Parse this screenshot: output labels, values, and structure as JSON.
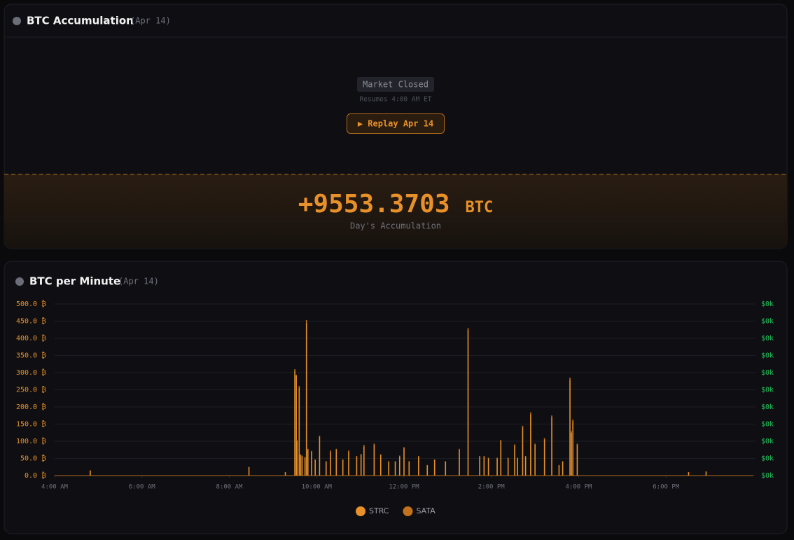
{
  "panel": {
    "title": "BTC Accumulation",
    "date": "(Apr 14)",
    "status": "Market Closed",
    "resumes": "Resumes 4:00 AM ET",
    "button": "▶ Replay Apr 14",
    "total": "+9553.3703",
    "unit": "BTC",
    "total_label": "Day's Accumulation"
  },
  "chart_data": {
    "type": "bar",
    "title": "BTC per Minute",
    "subtitle": "(Apr 14)",
    "stacked": true,
    "x": [
      289,
      507,
      557,
      570,
      572,
      573,
      576,
      578,
      580,
      584,
      586,
      588,
      593,
      598,
      604,
      613,
      619,
      627,
      636,
      644,
      655,
      661,
      665,
      679,
      688,
      699,
      708,
      714,
      720,
      727,
      740,
      752,
      762,
      777,
      796,
      808,
      824,
      830,
      836,
      848,
      853,
      863,
      872,
      876,
      883,
      887,
      894,
      900,
      913,
      923,
      933,
      938,
      948,
      950,
      952,
      958,
      1111,
      1135
    ],
    "series": [
      {
        "name": "STRC",
        "color": "#e8912a",
        "values": [
          15,
          25,
          10,
          305,
          290,
          100,
          255,
          60,
          55,
          50,
          445,
          75,
          70,
          45,
          112,
          40,
          70,
          75,
          45,
          70,
          55,
          60,
          85,
          90,
          60,
          40,
          40,
          55,
          80,
          40,
          55,
          30,
          45,
          40,
          75,
          425,
          55,
          55,
          50,
          50,
          100,
          50,
          88,
          50,
          140,
          55,
          178,
          90,
          105,
          170,
          30,
          40,
          278,
          125,
          158,
          90,
          10,
          12
        ]
      },
      {
        "name": "SATA",
        "color": "#c2721a",
        "values": [
          0,
          0,
          0,
          5,
          4,
          3,
          6,
          2,
          3,
          4,
          8,
          3,
          2,
          2,
          4,
          2,
          3,
          3,
          2,
          3,
          2,
          3,
          4,
          3,
          2,
          2,
          2,
          3,
          3,
          2,
          2,
          1,
          2,
          2,
          3,
          5,
          2,
          2,
          2,
          2,
          4,
          2,
          3,
          2,
          5,
          2,
          6,
          3,
          4,
          5,
          1,
          2,
          7,
          4,
          5,
          3,
          0,
          0
        ]
      }
    ],
    "xlim": [
      240,
      1200
    ],
    "xticks": [
      {
        "value": 240,
        "label": "4:00 AM"
      },
      {
        "value": 360,
        "label": "6:00 AM"
      },
      {
        "value": 480,
        "label": "8:00 AM"
      },
      {
        "value": 600,
        "label": "10:00 AM"
      },
      {
        "value": 720,
        "label": "12:00 PM"
      },
      {
        "value": 840,
        "label": "2:00 PM"
      },
      {
        "value": 960,
        "label": "4:00 PM"
      },
      {
        "value": 1080,
        "label": "6:00 PM"
      }
    ],
    "ylim": [
      0,
      500
    ],
    "yticks": [
      {
        "value": 0,
        "label": "0.0 ₿"
      },
      {
        "value": 50,
        "label": "50.0 ₿"
      },
      {
        "value": 100,
        "label": "100.0 ₿"
      },
      {
        "value": 150,
        "label": "150.0 ₿"
      },
      {
        "value": 200,
        "label": "200.0 ₿"
      },
      {
        "value": 250,
        "label": "250.0 ₿"
      },
      {
        "value": 300,
        "label": "300.0 ₿"
      },
      {
        "value": 350,
        "label": "350.0 ₿"
      },
      {
        "value": 400,
        "label": "400.0 ₿"
      },
      {
        "value": 450,
        "label": "450.0 ₿"
      },
      {
        "value": 500,
        "label": "500.0 ₿"
      }
    ],
    "y2lim": [
      0,
      400
    ],
    "y2ticks": [
      {
        "value": 0,
        "label": "$0k"
      },
      {
        "value": 40,
        "label": "$0k"
      },
      {
        "value": 80,
        "label": "$0k"
      },
      {
        "value": 120,
        "label": "$0k"
      },
      {
        "value": 160,
        "label": "$0k"
      },
      {
        "value": 200,
        "label": "$0k"
      },
      {
        "value": 240,
        "label": "$0k"
      },
      {
        "value": 280,
        "label": "$0k"
      },
      {
        "value": 320,
        "label": "$0k"
      },
      {
        "value": 360,
        "label": "$0k"
      },
      {
        "value": 400,
        "label": "$0k"
      }
    ],
    "grid": true,
    "legend": "bottom"
  }
}
